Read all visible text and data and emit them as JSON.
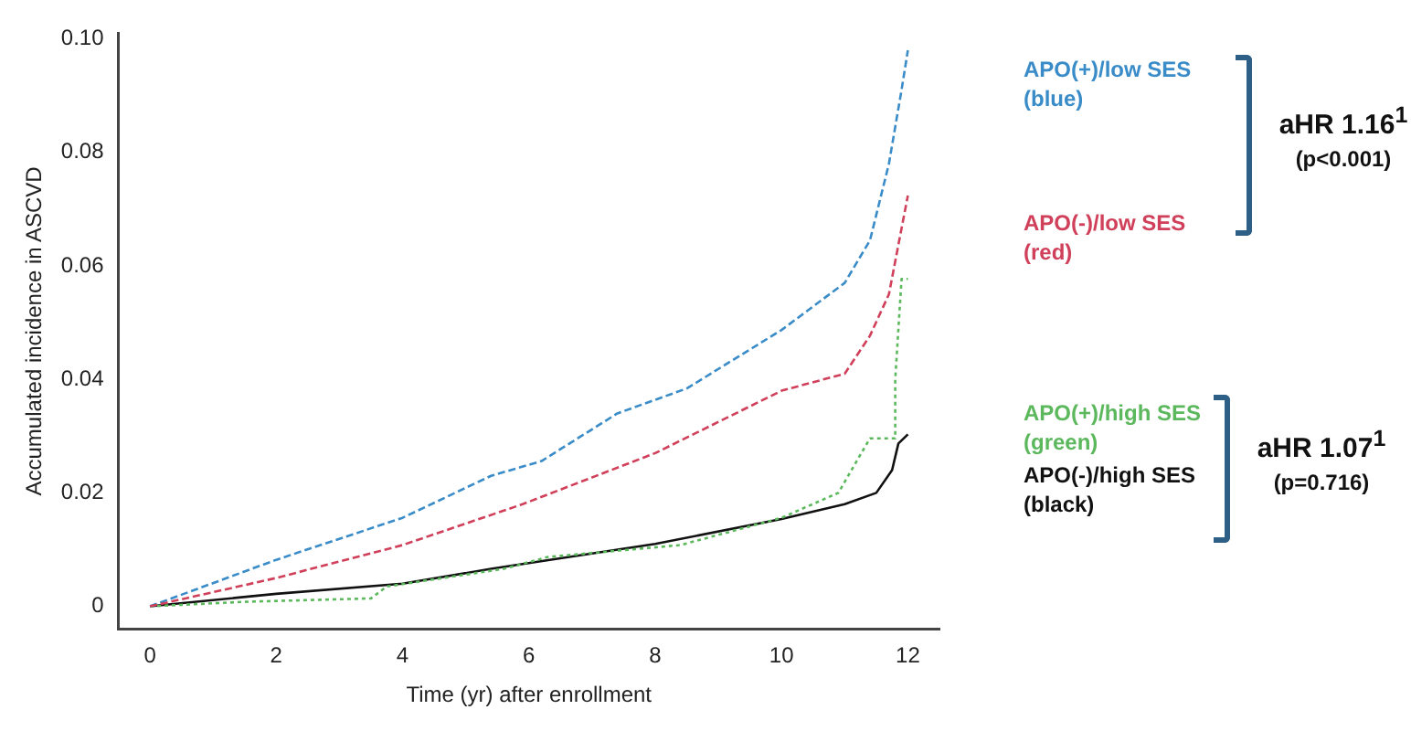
{
  "chart_data": {
    "type": "line",
    "xlabel": "Time (yr) after enrollment",
    "ylabel": "Accumulated incidence in ASCVD",
    "xlim": [
      -0.5,
      12.5
    ],
    "xticks": [
      0,
      2,
      4,
      6,
      8,
      10,
      12
    ],
    "ylim": [
      -0.004,
      0.101
    ],
    "yticks": [
      0,
      0.02,
      0.04,
      0.06,
      0.08,
      {
        "value": 0.1,
        "label": "0.10"
      }
    ],
    "grid": false,
    "legend": "right",
    "marker": "none",
    "series": [
      {
        "name": "APO(+)/low SES (blue)",
        "color": "#3a8cc8",
        "line_style": "dashed",
        "x": [
          0,
          2,
          4,
          5.4,
          6.2,
          7.4,
          8.5,
          10,
          11,
          11.4,
          11.7,
          11.9,
          12
        ],
        "values": [
          0,
          0.0082,
          0.0156,
          0.023,
          0.0256,
          0.034,
          0.0384,
          0.0487,
          0.057,
          0.0645,
          0.078,
          0.091,
          0.098
        ]
      },
      {
        "name": "APO(-)/low SES (red)",
        "color": "#d0405a",
        "line_style": "dashed",
        "x": [
          0,
          2,
          4,
          5.9,
          8,
          10,
          11,
          11.4,
          11.7,
          11.9,
          12
        ],
        "values": [
          0,
          0.005,
          0.0108,
          0.018,
          0.027,
          0.038,
          0.041,
          0.0477,
          0.055,
          0.0666,
          0.0724
        ]
      },
      {
        "name": "APO(+)/high SES (green)",
        "color": "#5cb85c",
        "line_style": "dotted",
        "x": [
          0,
          1.5,
          3.5,
          3.75,
          5.6,
          6.3,
          8.4,
          10,
          10.9,
          11.2,
          11.4,
          11.8,
          11.8,
          11.9,
          12
        ],
        "values": [
          0,
          0.0008,
          0.0014,
          0.0035,
          0.0066,
          0.0087,
          0.0108,
          0.0156,
          0.02,
          0.0258,
          0.0296,
          0.0296,
          0.04,
          0.0577,
          0.0577
        ]
      },
      {
        "name": "APO(-)/high SES (black)",
        "color": "#111111",
        "line_style": "solid",
        "x": [
          0,
          2,
          4,
          5.4,
          8,
          10,
          11,
          11.5,
          11.75,
          11.85,
          12
        ],
        "values": [
          0,
          0.0022,
          0.004,
          0.0066,
          0.011,
          0.0154,
          0.018,
          0.02,
          0.024,
          0.0287,
          0.0303
        ]
      }
    ],
    "annotations": [
      "aHR 1.16$^{1}$",
      "(p<0.001)",
      "aHR 1.07$^{1}$",
      "(p=0.716)"
    ]
  }
}
